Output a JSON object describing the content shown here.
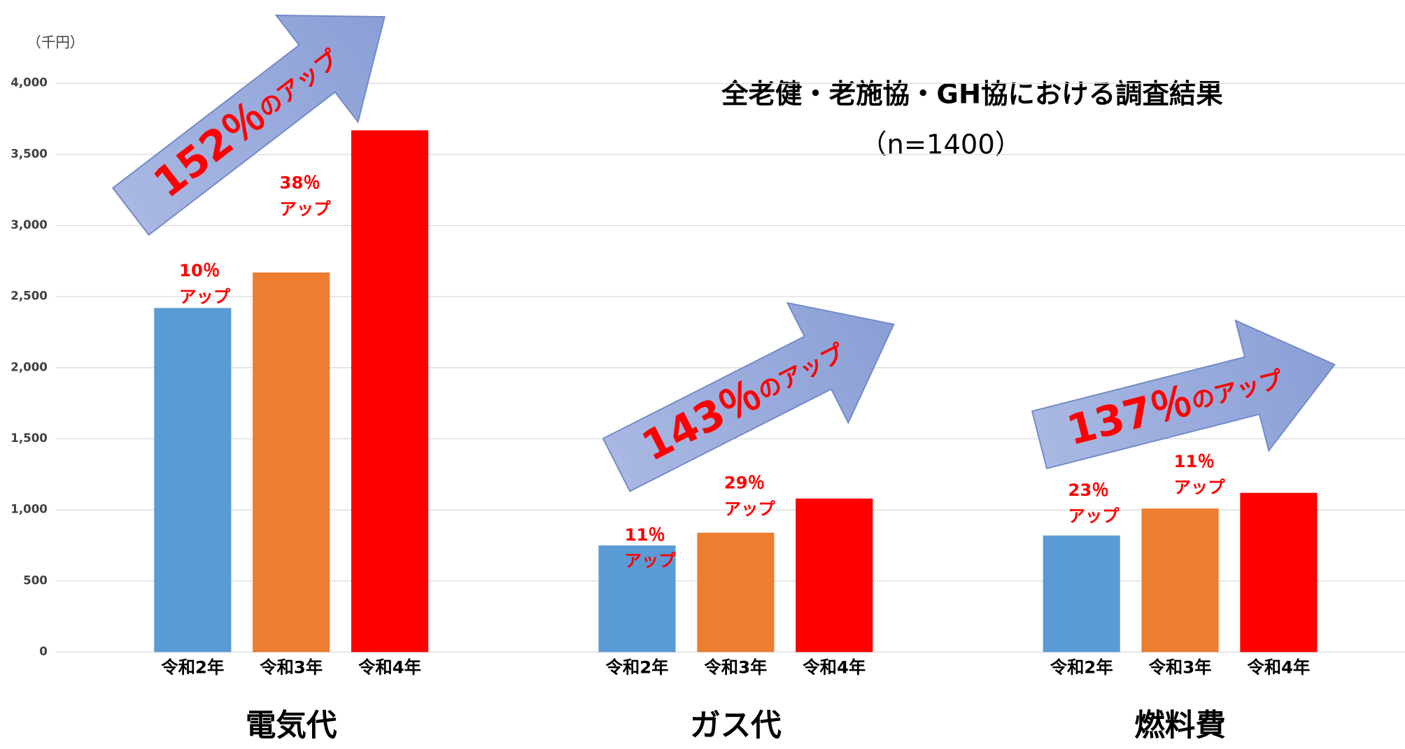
{
  "chart_data": {
    "type": "bar",
    "title": "全老健・老施協・GH協における調査結果",
    "subtitle": "（n=1400）",
    "y_unit_label": "（千円）",
    "categories": [
      "電気代",
      "ガス代",
      "燃料費"
    ],
    "series": [
      {
        "name": "令和2年",
        "color": "#5b9bd5",
        "values": [
          2420,
          750,
          820
        ]
      },
      {
        "name": "令和3年",
        "color": "#ed7d31",
        "values": [
          2670,
          840,
          1010
        ]
      },
      {
        "name": "令和4年",
        "color": "#ff0000",
        "values": [
          3670,
          1080,
          1120
        ]
      }
    ],
    "ylim": [
      0,
      4000
    ],
    "yticks": [
      0,
      500,
      {
        "value": 1000,
        "label": "1,000"
      },
      {
        "value": 1500,
        "label": "1,500"
      },
      {
        "value": 2000,
        "label": "2,000"
      },
      {
        "value": 2500,
        "label": "2,500"
      },
      {
        "value": 3000,
        "label": "3,000"
      },
      {
        "value": 3500,
        "label": "3,500"
      },
      {
        "value": 4000,
        "label": "4,000"
      }
    ],
    "grid": true,
    "bar_annotations": [
      {
        "lines": [
          "10％",
          "アップ"
        ]
      },
      {
        "lines": [
          "38％",
          "アップ"
        ]
      },
      {
        "lines": [
          "11％",
          "アップ"
        ]
      },
      {
        "lines": [
          "29％",
          "アップ"
        ]
      },
      {
        "lines": [
          "23％",
          "アップ"
        ]
      },
      {
        "lines": [
          "11％",
          "アップ"
        ]
      }
    ],
    "arrow_labels": [
      {
        "number": "152％",
        "suffix": "のアップ"
      },
      {
        "number": "143％",
        "suffix": "のアップ"
      },
      {
        "number": "137％",
        "suffix": "のアップ"
      }
    ]
  }
}
